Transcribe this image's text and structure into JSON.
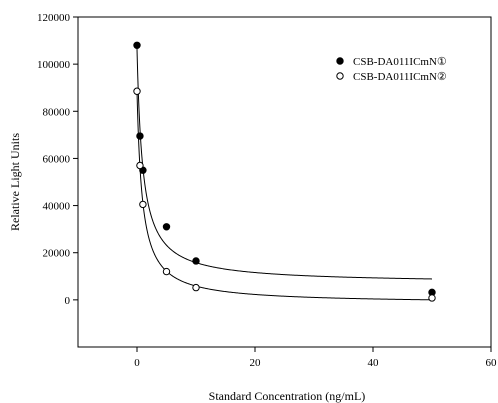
{
  "chart_data": {
    "type": "scatter",
    "xlabel": "Standard Concentration (ng/mL)",
    "ylabel": "Relative Light Units",
    "xlim": [
      -10,
      60
    ],
    "ylim": [
      -20000,
      120000
    ],
    "x_ticks": [
      0,
      20,
      40,
      60
    ],
    "y_ticks": [
      0,
      20000,
      40000,
      60000,
      80000,
      100000,
      120000
    ],
    "x_tick_labels": [
      "0",
      "20",
      "40",
      "60"
    ],
    "y_tick_labels": [
      "0",
      "20000",
      "40000",
      "60000",
      "80000",
      "100000",
      "120000"
    ],
    "grid": false,
    "legend_position": "top-right",
    "series": [
      {
        "name": "CSB-DA011ICmN①",
        "marker": "filled-circle",
        "color": "#000000",
        "points": [
          {
            "x": 0,
            "y": 108000
          },
          {
            "x": 0.5,
            "y": 69500
          },
          {
            "x": 1,
            "y": 55000
          },
          {
            "x": 5,
            "y": 31000
          },
          {
            "x": 10,
            "y": 16500
          },
          {
            "x": 50,
            "y": 3200
          }
        ],
        "fit": "hyperbolic-decay"
      },
      {
        "name": "CSB-DA011ICmN②",
        "marker": "open-circle",
        "color": "#000000",
        "points": [
          {
            "x": 0,
            "y": 88500
          },
          {
            "x": 0.5,
            "y": 57000
          },
          {
            "x": 1,
            "y": 40500
          },
          {
            "x": 5,
            "y": 12000
          },
          {
            "x": 10,
            "y": 5200
          },
          {
            "x": 50,
            "y": 800
          }
        ],
        "fit": "hyperbolic-decay"
      }
    ]
  }
}
